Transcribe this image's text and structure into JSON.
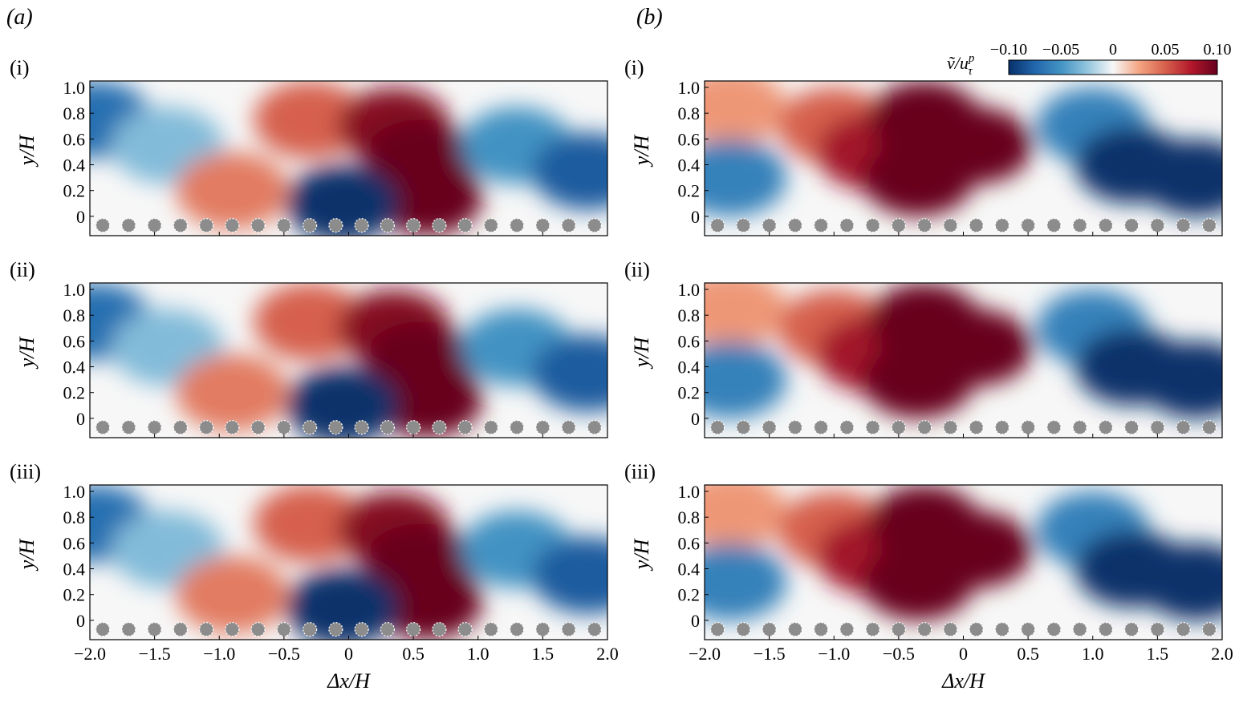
{
  "chart_data": {
    "type": "heatmap",
    "column_labels": [
      "(a)",
      "(b)"
    ],
    "row_labels": [
      "(i)",
      "(ii)",
      "(iii)"
    ],
    "xlabel": "Δx/H",
    "ylabel": "y/H",
    "xlim": [
      -2.0,
      2.0
    ],
    "ylim": [
      -0.15,
      1.05
    ],
    "x_ticks": [
      "−2.0",
      "−1.5",
      "−1.0",
      "−0.5",
      "0",
      "0.5",
      "1.0",
      "1.5",
      "2.0"
    ],
    "y_ticks": [
      "0",
      "0.2",
      "0.4",
      "0.6",
      "0.8",
      "1.0"
    ],
    "colorbar": {
      "label_main": "ṽ/u",
      "label_sup": "p",
      "label_sub": "τ",
      "min": -0.1,
      "max": 0.1,
      "ticks": [
        "−0.10",
        "−0.05",
        "0",
        "0.05",
        "0.10"
      ],
      "colors": [
        "#08306b",
        "#2166ac",
        "#4393c3",
        "#92c5de",
        "#f7f7f7",
        "#f4a582",
        "#d6604d",
        "#b2182b",
        "#67001f"
      ]
    },
    "roughness_element_positions": [
      -1.9,
      -1.7,
      -1.5,
      -1.3,
      -1.1,
      -0.9,
      -0.7,
      -0.5,
      -0.3,
      -0.1,
      0.1,
      0.3,
      0.5,
      0.7,
      0.9,
      1.1,
      1.3,
      1.5,
      1.7,
      1.9
    ],
    "panels": [
      {
        "column": "a",
        "row": "i",
        "fields": [
          {
            "x": -1.95,
            "y": 0.75,
            "value": -0.07
          },
          {
            "x": -1.4,
            "y": 0.55,
            "value": -0.03
          },
          {
            "x": -0.9,
            "y": 0.2,
            "value": 0.04
          },
          {
            "x": -0.3,
            "y": 0.75,
            "value": 0.05
          },
          {
            "x": 0.35,
            "y": 0.7,
            "value": 0.09
          },
          {
            "x": 0.55,
            "y": 0.45,
            "value": 0.12
          },
          {
            "x": 0.6,
            "y": 0.15,
            "value": 0.1
          },
          {
            "x": -0.05,
            "y": 0.1,
            "value": -0.12
          },
          {
            "x": 1.3,
            "y": 0.55,
            "value": -0.05
          },
          {
            "x": 1.85,
            "y": 0.35,
            "value": -0.08
          }
        ]
      },
      {
        "column": "a",
        "row": "ii",
        "fields": [
          {
            "x": -1.95,
            "y": 0.75,
            "value": -0.07
          },
          {
            "x": -1.4,
            "y": 0.55,
            "value": -0.03
          },
          {
            "x": -0.9,
            "y": 0.2,
            "value": 0.04
          },
          {
            "x": -0.3,
            "y": 0.75,
            "value": 0.05
          },
          {
            "x": 0.35,
            "y": 0.7,
            "value": 0.09
          },
          {
            "x": 0.55,
            "y": 0.45,
            "value": 0.12
          },
          {
            "x": 0.6,
            "y": 0.15,
            "value": 0.1
          },
          {
            "x": -0.05,
            "y": 0.1,
            "value": -0.12
          },
          {
            "x": 1.3,
            "y": 0.55,
            "value": -0.05
          },
          {
            "x": 1.85,
            "y": 0.35,
            "value": -0.08
          }
        ]
      },
      {
        "column": "a",
        "row": "iii",
        "fields": [
          {
            "x": -1.95,
            "y": 0.75,
            "value": -0.07
          },
          {
            "x": -1.4,
            "y": 0.55,
            "value": -0.03
          },
          {
            "x": -0.9,
            "y": 0.2,
            "value": 0.04
          },
          {
            "x": -0.3,
            "y": 0.75,
            "value": 0.05
          },
          {
            "x": 0.35,
            "y": 0.7,
            "value": 0.09
          },
          {
            "x": 0.55,
            "y": 0.45,
            "value": 0.12
          },
          {
            "x": 0.6,
            "y": 0.15,
            "value": 0.1
          },
          {
            "x": -0.05,
            "y": 0.1,
            "value": -0.12
          },
          {
            "x": 1.3,
            "y": 0.55,
            "value": -0.05
          },
          {
            "x": 1.85,
            "y": 0.35,
            "value": -0.08
          }
        ]
      },
      {
        "column": "b",
        "row": "i",
        "fields": [
          {
            "x": -1.8,
            "y": 0.85,
            "value": 0.03
          },
          {
            "x": -1.8,
            "y": 0.3,
            "value": -0.06
          },
          {
            "x": -1.0,
            "y": 0.7,
            "value": 0.05
          },
          {
            "x": -0.7,
            "y": 0.5,
            "value": 0.08
          },
          {
            "x": -0.3,
            "y": 0.75,
            "value": 0.12
          },
          {
            "x": -0.35,
            "y": 0.3,
            "value": 0.14
          },
          {
            "x": 0.1,
            "y": 0.55,
            "value": 0.1
          },
          {
            "x": 1.0,
            "y": 0.7,
            "value": -0.06
          },
          {
            "x": 1.3,
            "y": 0.4,
            "value": -0.14
          },
          {
            "x": 1.8,
            "y": 0.3,
            "value": -0.12
          }
        ]
      },
      {
        "column": "b",
        "row": "ii",
        "fields": [
          {
            "x": -1.8,
            "y": 0.85,
            "value": 0.03
          },
          {
            "x": -1.8,
            "y": 0.3,
            "value": -0.06
          },
          {
            "x": -1.0,
            "y": 0.7,
            "value": 0.05
          },
          {
            "x": -0.7,
            "y": 0.5,
            "value": 0.08
          },
          {
            "x": -0.3,
            "y": 0.75,
            "value": 0.12
          },
          {
            "x": -0.35,
            "y": 0.3,
            "value": 0.14
          },
          {
            "x": 0.1,
            "y": 0.55,
            "value": 0.1
          },
          {
            "x": 1.0,
            "y": 0.7,
            "value": -0.06
          },
          {
            "x": 1.3,
            "y": 0.4,
            "value": -0.14
          },
          {
            "x": 1.8,
            "y": 0.3,
            "value": -0.12
          }
        ]
      },
      {
        "column": "b",
        "row": "iii",
        "fields": [
          {
            "x": -1.8,
            "y": 0.85,
            "value": 0.03
          },
          {
            "x": -1.8,
            "y": 0.3,
            "value": -0.06
          },
          {
            "x": -1.0,
            "y": 0.7,
            "value": 0.05
          },
          {
            "x": -0.7,
            "y": 0.5,
            "value": 0.08
          },
          {
            "x": -0.3,
            "y": 0.75,
            "value": 0.12
          },
          {
            "x": -0.35,
            "y": 0.3,
            "value": 0.14
          },
          {
            "x": 0.1,
            "y": 0.55,
            "value": 0.1
          },
          {
            "x": 1.0,
            "y": 0.7,
            "value": -0.06
          },
          {
            "x": 1.3,
            "y": 0.4,
            "value": -0.14
          },
          {
            "x": 1.8,
            "y": 0.3,
            "value": -0.12
          }
        ]
      }
    ]
  }
}
